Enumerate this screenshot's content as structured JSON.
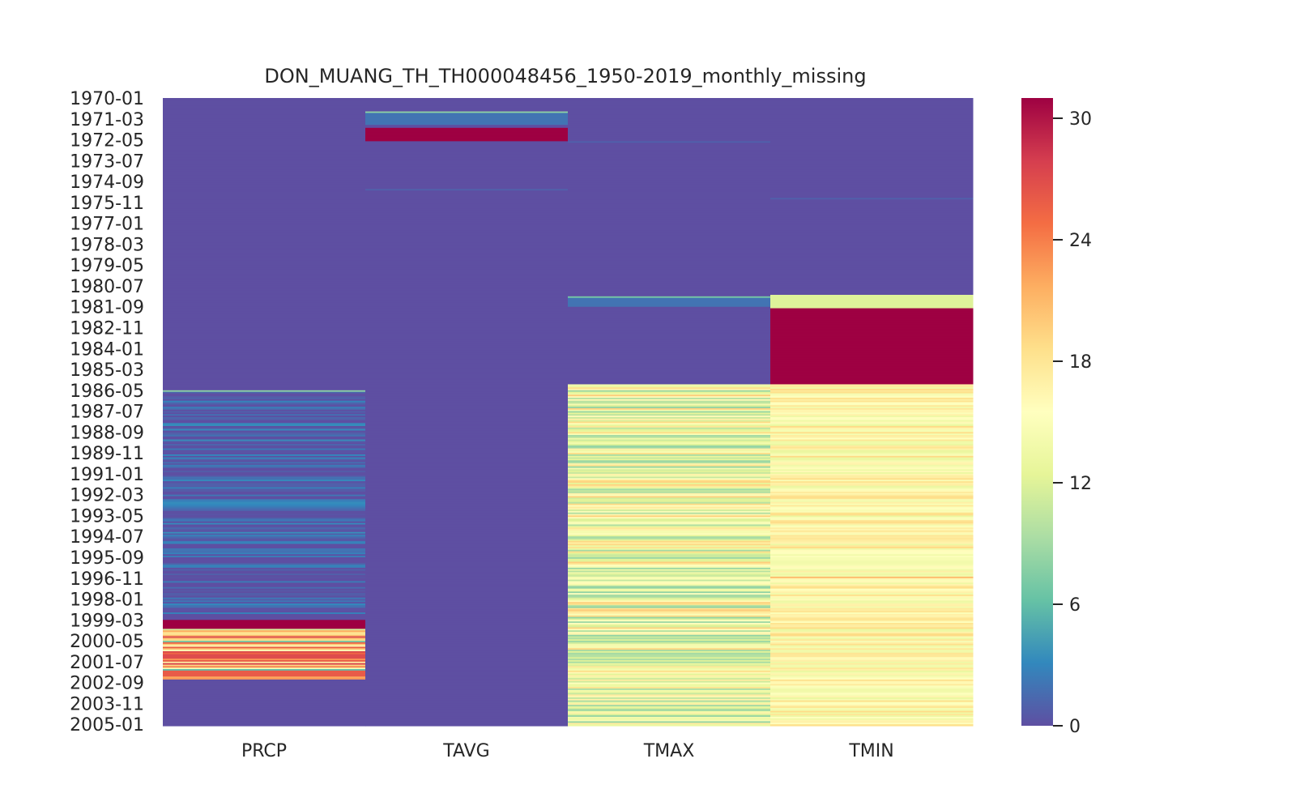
{
  "chart_data": {
    "type": "heatmap",
    "title": "DON_MUANG_TH_TH000048456_1950-2019_monthly_missing",
    "xlabel": "",
    "ylabel": "",
    "columns": [
      "PRCP",
      "TAVG",
      "TMAX",
      "TMIN"
    ],
    "y_start": "1970-01",
    "y_end": "2005-01",
    "y_tick_labels": [
      "1970-01",
      "1971-03",
      "1972-05",
      "1973-07",
      "1974-09",
      "1975-11",
      "1977-01",
      "1978-03",
      "1979-05",
      "1980-07",
      "1981-09",
      "1982-11",
      "1984-01",
      "1985-03",
      "1986-05",
      "1987-07",
      "1988-09",
      "1989-11",
      "1991-01",
      "1992-03",
      "1993-05",
      "1994-07",
      "1995-09",
      "1996-11",
      "1998-01",
      "1999-03",
      "2000-05",
      "2001-07",
      "2002-09",
      "2003-11",
      "2005-01"
    ],
    "colorbar": {
      "min": 0,
      "max": 31,
      "ticks": [
        0,
        6,
        12,
        18,
        24,
        30
      ],
      "colormap": "Spectral_r"
    },
    "bands": [
      {
        "column": "PRCP",
        "from": "1986-05",
        "to": "1999-02",
        "value": 1,
        "variation": 2.5
      },
      {
        "column": "PRCP",
        "from": "1986-05",
        "to": "1986-05",
        "value": 8
      },
      {
        "column": "PRCP",
        "from": "1999-03",
        "to": "1999-08",
        "value": 31
      },
      {
        "column": "PRCP",
        "from": "1999-09",
        "to": "2000-04",
        "value": 20,
        "variation": 9
      },
      {
        "column": "PRCP",
        "from": "2000-05",
        "to": "2002-06",
        "value": 16,
        "variation": 12
      },
      {
        "column": "PRCP",
        "from": "2001-02",
        "to": "2001-04",
        "value": 27
      },
      {
        "column": "PRCP",
        "from": "2002-01",
        "to": "2002-04",
        "value": 26
      },
      {
        "column": "TAVG",
        "from": "1970-10",
        "to": "1970-10",
        "value": 8
      },
      {
        "column": "TAVG",
        "from": "1970-11",
        "to": "1971-06",
        "value": 2
      },
      {
        "column": "TAVG",
        "from": "1971-09",
        "to": "1972-05",
        "value": 31
      },
      {
        "column": "TAVG",
        "from": "1975-02",
        "to": "1975-02",
        "value": 1
      },
      {
        "column": "TMAX",
        "from": "1972-06",
        "to": "1972-06",
        "value": 1
      },
      {
        "column": "TMAX",
        "from": "1981-02",
        "to": "1981-02",
        "value": 7
      },
      {
        "column": "TMAX",
        "from": "1981-03",
        "to": "1981-08",
        "value": 2
      },
      {
        "column": "TMAX",
        "from": "1986-01",
        "to": "2005-01",
        "value": 14,
        "variation": 6
      },
      {
        "column": "TMIN",
        "from": "1975-08",
        "to": "1975-08",
        "value": 1
      },
      {
        "column": "TMIN",
        "from": "1981-01",
        "to": "1981-09",
        "value": 12
      },
      {
        "column": "TMIN",
        "from": "1981-10",
        "to": "1985-12",
        "value": 31
      },
      {
        "column": "TMIN",
        "from": "1986-01",
        "to": "2005-01",
        "value": 16,
        "variation": 3
      },
      {
        "column": "TMIN",
        "from": "1996-10",
        "to": "1996-10",
        "value": 21
      }
    ]
  }
}
